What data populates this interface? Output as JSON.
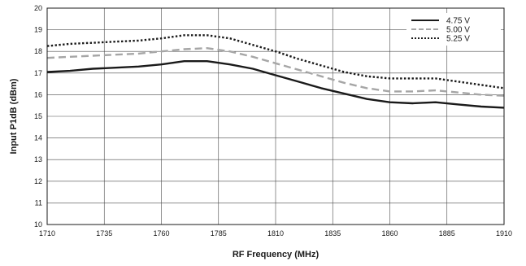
{
  "chart_data": {
    "type": "line",
    "xlabel": "RF Frequency (MHz)",
    "ylabel": "Input P1dB (dBm)",
    "xlim": [
      1710,
      1910
    ],
    "ylim": [
      10,
      20
    ],
    "xticks": [
      1710,
      1735,
      1760,
      1785,
      1810,
      1835,
      1860,
      1885,
      1910
    ],
    "yticks": [
      10,
      11,
      12,
      13,
      14,
      15,
      16,
      17,
      18,
      19,
      20
    ],
    "grid": true,
    "legend_position": "top-right",
    "series": [
      {
        "name": "4.75 V",
        "style": "solid",
        "color": "#1a1a1a",
        "x": [
          1710,
          1720,
          1730,
          1740,
          1750,
          1760,
          1770,
          1780,
          1790,
          1800,
          1810,
          1820,
          1830,
          1840,
          1850,
          1860,
          1870,
          1880,
          1890,
          1900,
          1910
        ],
        "y": [
          17.05,
          17.1,
          17.2,
          17.25,
          17.3,
          17.4,
          17.55,
          17.55,
          17.4,
          17.2,
          16.9,
          16.6,
          16.3,
          16.05,
          15.8,
          15.65,
          15.6,
          15.65,
          15.55,
          15.45,
          15.4
        ]
      },
      {
        "name": "5.00 V",
        "style": "dashed",
        "color": "#a6a6a6",
        "x": [
          1710,
          1720,
          1730,
          1740,
          1750,
          1760,
          1770,
          1780,
          1790,
          1800,
          1810,
          1820,
          1830,
          1840,
          1850,
          1860,
          1870,
          1880,
          1890,
          1900,
          1910
        ],
        "y": [
          17.7,
          17.75,
          17.8,
          17.85,
          17.9,
          18.0,
          18.1,
          18.15,
          18.0,
          17.75,
          17.45,
          17.15,
          16.85,
          16.55,
          16.3,
          16.15,
          16.15,
          16.2,
          16.1,
          16.0,
          15.95
        ]
      },
      {
        "name": "5.25 V",
        "style": "dotted",
        "color": "#1a1a1a",
        "x": [
          1710,
          1720,
          1730,
          1740,
          1750,
          1760,
          1770,
          1780,
          1790,
          1800,
          1810,
          1820,
          1830,
          1840,
          1850,
          1860,
          1870,
          1880,
          1890,
          1900,
          1910
        ],
        "y": [
          18.25,
          18.35,
          18.4,
          18.45,
          18.5,
          18.6,
          18.75,
          18.75,
          18.6,
          18.3,
          18.0,
          17.65,
          17.35,
          17.05,
          16.85,
          16.75,
          16.75,
          16.75,
          16.6,
          16.45,
          16.3
        ]
      }
    ]
  }
}
